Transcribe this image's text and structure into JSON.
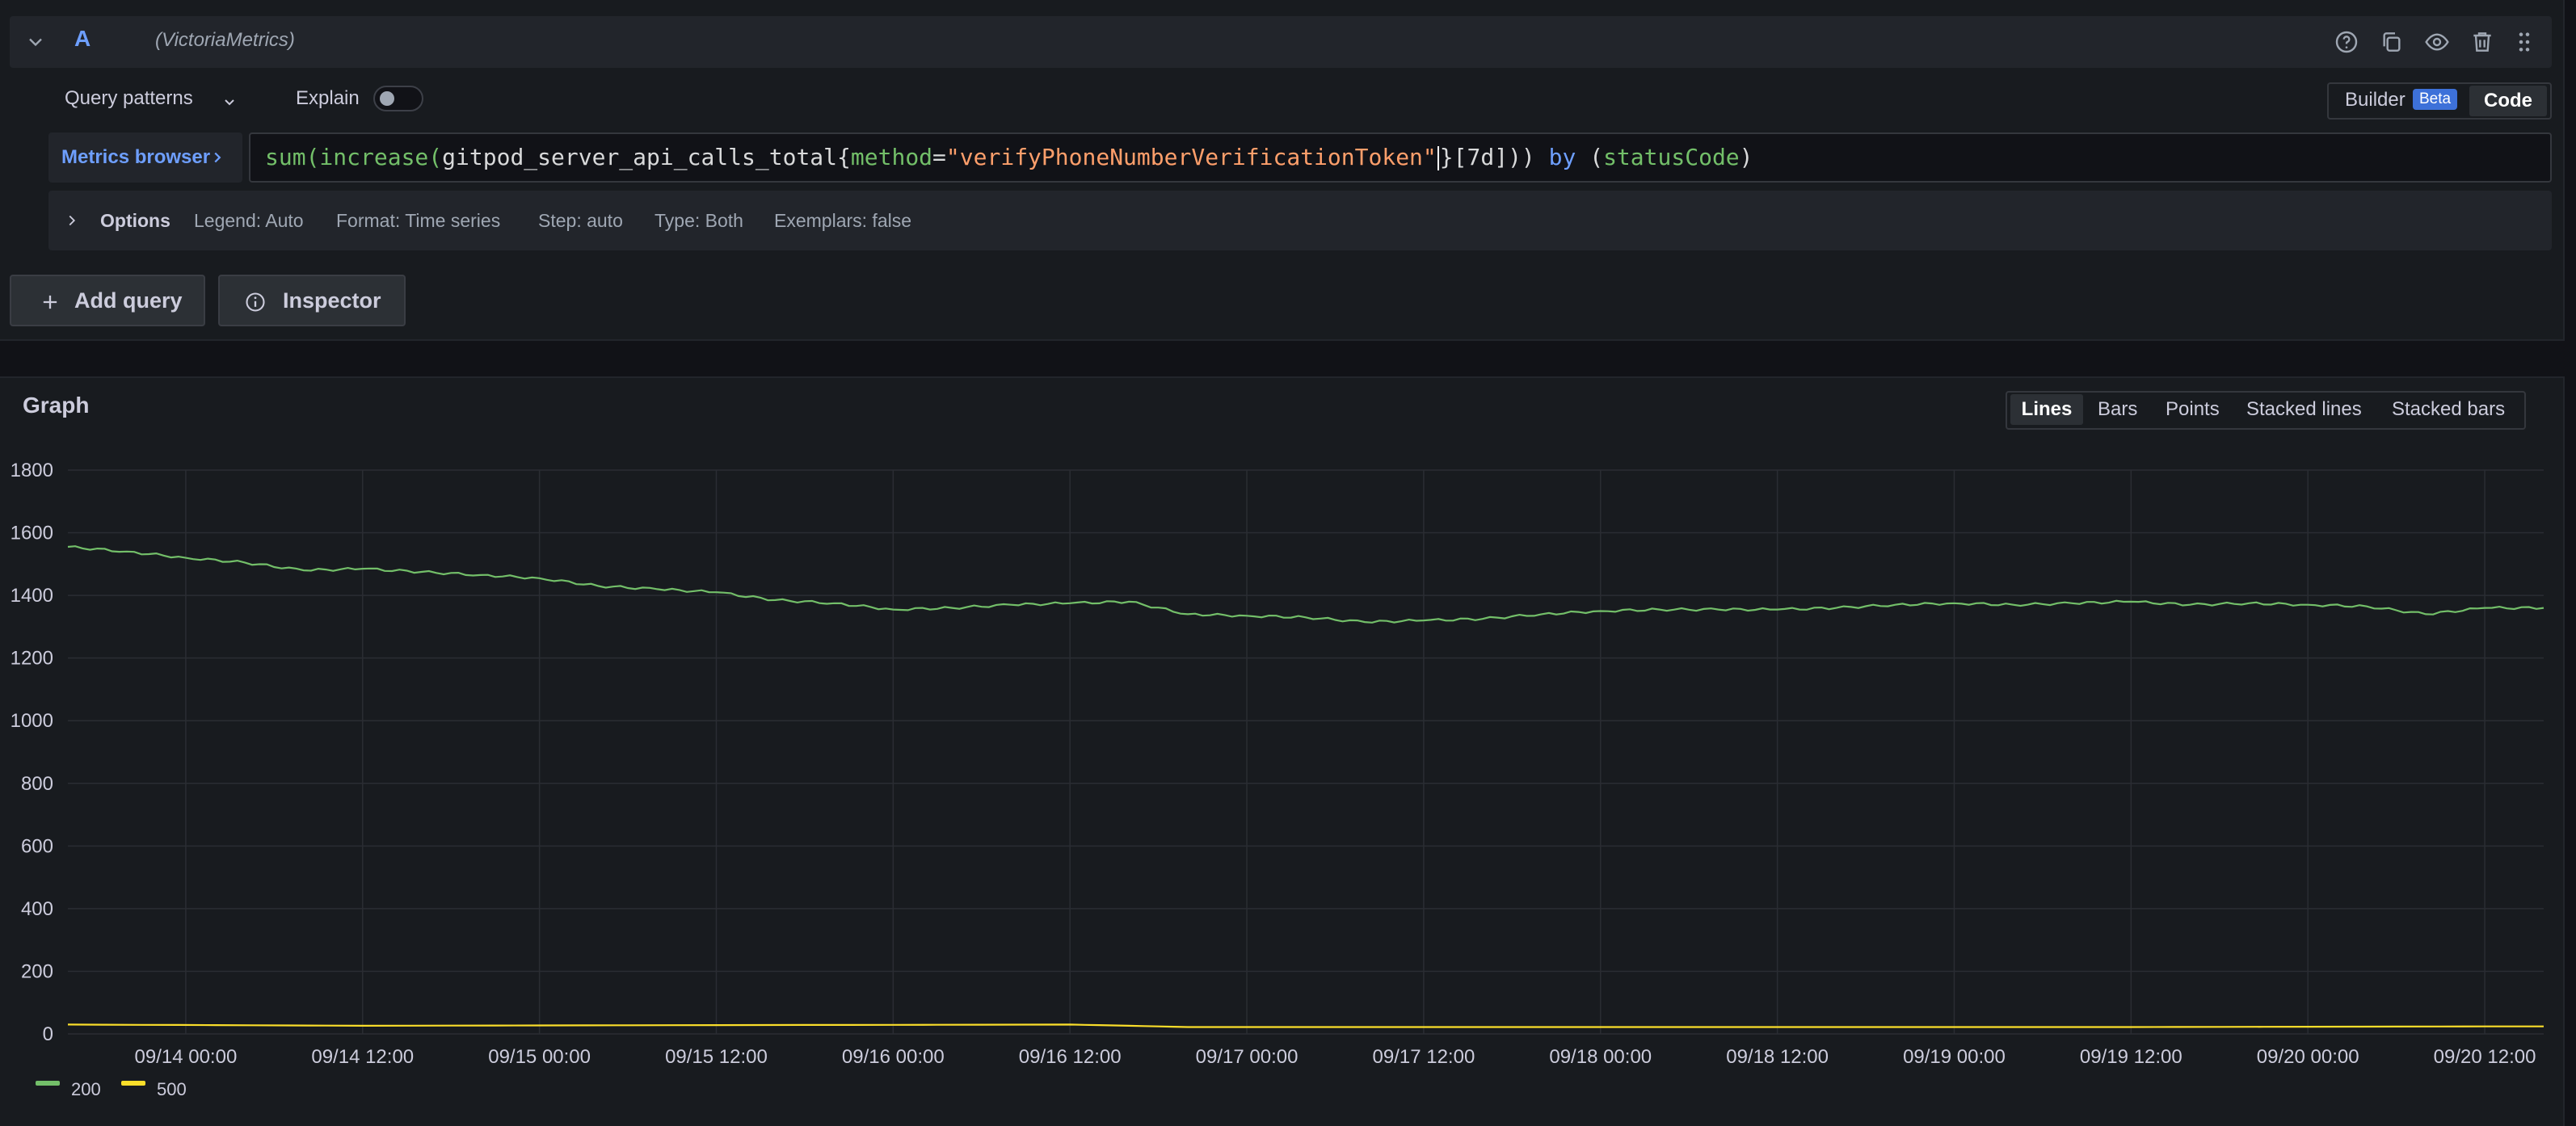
{
  "query": {
    "ref_id": "A",
    "datasource": "(VictoriaMetrics)",
    "header_icons": [
      "help-icon",
      "duplicate-icon",
      "eye-icon",
      "trash-icon",
      "drag-handle-icon"
    ],
    "patterns_label": "Query patterns",
    "explain_label": "Explain",
    "explain_on": false,
    "builder_label": "Builder",
    "beta_label": "Beta",
    "code_label": "Code",
    "metrics_browser_label": "Metrics browser",
    "expr": {
      "t1": "sum(increase(",
      "t2": "gitpod_server_api_calls_total",
      "t3": "{",
      "t4": "method",
      "t5": "=",
      "t6": "\"verifyPhoneNumberVerificationToken\"",
      "t7": "}[7d])) ",
      "t8": "by",
      "t9": " (",
      "t10": "statusCode",
      "t11": ")"
    },
    "options": {
      "title": "Options",
      "legend": "Legend: Auto",
      "format": "Format: Time series",
      "step": "Step: auto",
      "type": "Type: Both",
      "exemplars": "Exemplars: false"
    }
  },
  "actions": {
    "add_query": "Add query",
    "inspector": "Inspector"
  },
  "graph": {
    "title": "Graph",
    "views": [
      "Lines",
      "Bars",
      "Points",
      "Stacked lines",
      "Stacked bars"
    ],
    "active_view": "Lines"
  },
  "colors": {
    "series_200": "#73bf69",
    "series_500": "#fade2a",
    "accent": "#6e9fff"
  },
  "chart_data": {
    "type": "line",
    "ylim": [
      0,
      1800
    ],
    "y_ticks": [
      0,
      200,
      400,
      600,
      800,
      1000,
      1200,
      1400,
      1600,
      1800
    ],
    "x_ticks": [
      "09/14 00:00",
      "09/14 12:00",
      "09/15 00:00",
      "09/15 12:00",
      "09/16 00:00",
      "09/16 12:00",
      "09/17 00:00",
      "09/17 12:00",
      "09/18 00:00",
      "09/18 12:00",
      "09/19 00:00",
      "09/19 12:00",
      "09/20 00:00",
      "09/20 12:00"
    ],
    "x_start": "09/13 16:00",
    "x_end": "09/20 16:00",
    "grid": true,
    "legend_position": "bottom-left",
    "series": [
      {
        "name": "200",
        "x": [
          "09/13 16:00",
          "09/13 20:00",
          "09/14 00:00",
          "09/14 04:00",
          "09/14 08:00",
          "09/14 12:00",
          "09/14 16:00",
          "09/14 20:00",
          "09/15 00:00",
          "09/15 04:00",
          "09/15 08:00",
          "09/15 12:00",
          "09/15 16:00",
          "09/15 20:00",
          "09/16 00:00",
          "09/16 04:00",
          "09/16 08:00",
          "09/16 12:00",
          "09/16 16:00",
          "09/16 20:00",
          "09/17 00:00",
          "09/17 04:00",
          "09/17 08:00",
          "09/17 12:00",
          "09/17 16:00",
          "09/17 20:00",
          "09/18 00:00",
          "09/18 04:00",
          "09/18 08:00",
          "09/18 12:00",
          "09/18 16:00",
          "09/18 20:00",
          "09/19 00:00",
          "09/19 04:00",
          "09/19 08:00",
          "09/19 12:00",
          "09/19 16:00",
          "09/19 20:00",
          "09/20 00:00",
          "09/20 04:00",
          "09/20 08:00",
          "09/20 12:00",
          "09/20 16:00"
        ],
        "values": [
          1555,
          1540,
          1520,
          1505,
          1480,
          1485,
          1475,
          1465,
          1455,
          1430,
          1420,
          1410,
          1385,
          1375,
          1355,
          1360,
          1370,
          1375,
          1380,
          1340,
          1335,
          1330,
          1315,
          1320,
          1325,
          1340,
          1350,
          1355,
          1355,
          1355,
          1360,
          1370,
          1375,
          1370,
          1375,
          1380,
          1370,
          1375,
          1370,
          1365,
          1340,
          1360,
          1360
        ]
      },
      {
        "name": "500",
        "x": [
          "09/13 16:00",
          "09/14 12:00",
          "09/15 12:00",
          "09/16 12:00",
          "09/16 20:00",
          "09/17 12:00",
          "09/18 12:00",
          "09/19 12:00",
          "09/20 12:00",
          "09/20 16:00"
        ],
        "values": [
          30,
          26,
          28,
          30,
          22,
          22,
          22,
          22,
          24,
          24
        ]
      }
    ]
  }
}
